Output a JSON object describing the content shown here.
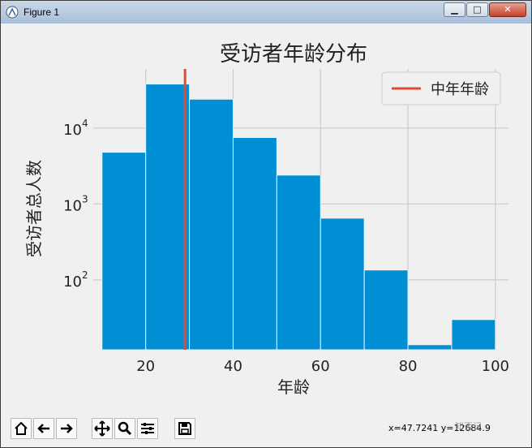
{
  "window": {
    "title": "Figure 1"
  },
  "toolbar": {
    "coords_text": "x=47.7241   y=12684.9",
    "watermark": "知否记"
  },
  "chart_data": {
    "type": "bar",
    "title": "受访者年龄分布",
    "xlabel": "年龄",
    "ylabel": "受访者总人数",
    "yscale": "log",
    "x_ticks": [
      20,
      40,
      60,
      80,
      100
    ],
    "y_ticks": [
      {
        "value": 100,
        "label": "10",
        "exp": "2"
      },
      {
        "value": 1000,
        "label": "10",
        "exp": "3"
      },
      {
        "value": 10000,
        "label": "10",
        "exp": "4"
      }
    ],
    "bins": [
      {
        "start": 10,
        "end": 20,
        "value": 4800
      },
      {
        "start": 20,
        "end": 30,
        "value": 38000
      },
      {
        "start": 30,
        "end": 40,
        "value": 24000
      },
      {
        "start": 40,
        "end": 50,
        "value": 7500
      },
      {
        "start": 50,
        "end": 60,
        "value": 2400
      },
      {
        "start": 60,
        "end": 70,
        "value": 650
      },
      {
        "start": 70,
        "end": 80,
        "value": 135
      },
      {
        "start": 80,
        "end": 90,
        "value": 14
      },
      {
        "start": 90,
        "end": 100,
        "value": 30
      }
    ],
    "vline": {
      "x": 29,
      "label": "中年年龄",
      "color": "#e24a33"
    },
    "bar_color": "#008fd5",
    "grid": true,
    "legend_position": "top-right"
  }
}
